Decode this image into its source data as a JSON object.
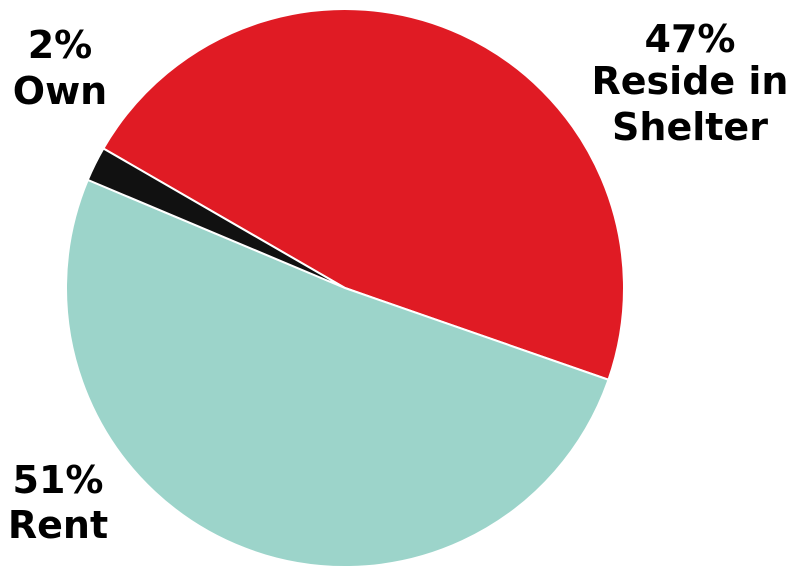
{
  "chart_data": {
    "type": "pie",
    "title": "",
    "slices": [
      {
        "label": "Reside in Shelter",
        "value": 47,
        "value_text": "47%",
        "label_lines": [
          "Reside in",
          "Shelter"
        ],
        "color": "#e01b24"
      },
      {
        "label": "Rent",
        "value": 51,
        "value_text": "51%",
        "label_lines": [
          "Rent"
        ],
        "color": "#9cd4ca"
      },
      {
        "label": "Own",
        "value": 2,
        "value_text": "2%",
        "label_lines": [
          "Own"
        ],
        "color": "#111111"
      }
    ],
    "legend": "none",
    "slice_border_color": "#ffffff"
  }
}
